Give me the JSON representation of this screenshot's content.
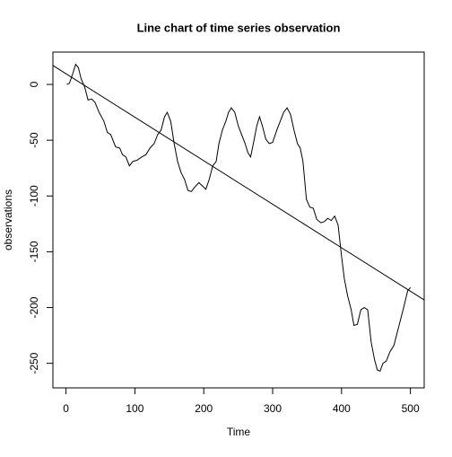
{
  "chart_data": {
    "type": "line",
    "title": "Line chart of time series observation",
    "x_label": "Time",
    "y_label": "observations",
    "x": [
      1,
      5,
      10,
      14,
      18,
      22,
      27,
      32,
      37,
      42,
      48,
      55,
      60,
      65,
      72,
      78,
      82,
      87,
      92,
      97,
      103,
      110,
      116,
      122,
      128,
      133,
      138,
      143,
      147,
      152,
      157,
      162,
      167,
      172,
      177,
      182,
      187,
      193,
      198,
      203,
      208,
      213,
      218,
      222,
      227,
      232,
      236,
      240,
      245,
      250,
      255,
      260,
      264,
      268,
      272,
      277,
      281,
      285,
      290,
      295,
      300,
      306,
      311,
      316,
      321,
      326,
      331,
      336,
      340,
      344,
      349,
      354,
      359,
      364,
      370,
      375,
      380,
      385,
      390,
      395,
      400,
      404,
      409,
      414,
      418,
      423,
      428,
      433,
      438,
      443,
      448,
      452,
      456,
      460,
      465,
      470,
      476,
      481,
      486,
      491,
      496,
      500
    ],
    "series": [
      {
        "color": "#000000",
        "values": [
          0,
          1,
          10,
          18,
          15,
          5,
          -2,
          -14,
          -13,
          -16,
          -25,
          -33,
          -43,
          -45,
          -56,
          -57,
          -63,
          -65,
          -73,
          -69,
          -68,
          -65,
          -63,
          -57,
          -53,
          -45,
          -41,
          -29,
          -25,
          -33,
          -53,
          -69,
          -79,
          -85,
          -95,
          -96,
          -92,
          -88,
          -91,
          -94,
          -85,
          -73,
          -69,
          -53,
          -41,
          -33,
          -25,
          -21,
          -25,
          -37,
          -45,
          -53,
          -61,
          -65,
          -53,
          -37,
          -29,
          -37,
          -49,
          -53,
          -52,
          -41,
          -33,
          -25,
          -21,
          -27,
          -41,
          -53,
          -57,
          -69,
          -103,
          -110,
          -111,
          -121,
          -124,
          -123,
          -120,
          -122,
          -118,
          -126,
          -154,
          -174,
          -190,
          -202,
          -216,
          -215,
          -202,
          -200,
          -202,
          -231,
          -247,
          -256,
          -257,
          -250,
          -248,
          -240,
          -234,
          -222,
          -210,
          -198,
          -185,
          -182
        ]
      }
    ],
    "trend_line": {
      "intercept": 9.6,
      "slope": -0.39
    },
    "xlim": [
      -19,
      520
    ],
    "ylim": [
      -272,
      29
    ],
    "xticks": [
      0,
      100,
      200,
      300,
      400,
      500
    ],
    "yticks": [
      0,
      -50,
      -100,
      -150,
      -200,
      -250
    ]
  }
}
